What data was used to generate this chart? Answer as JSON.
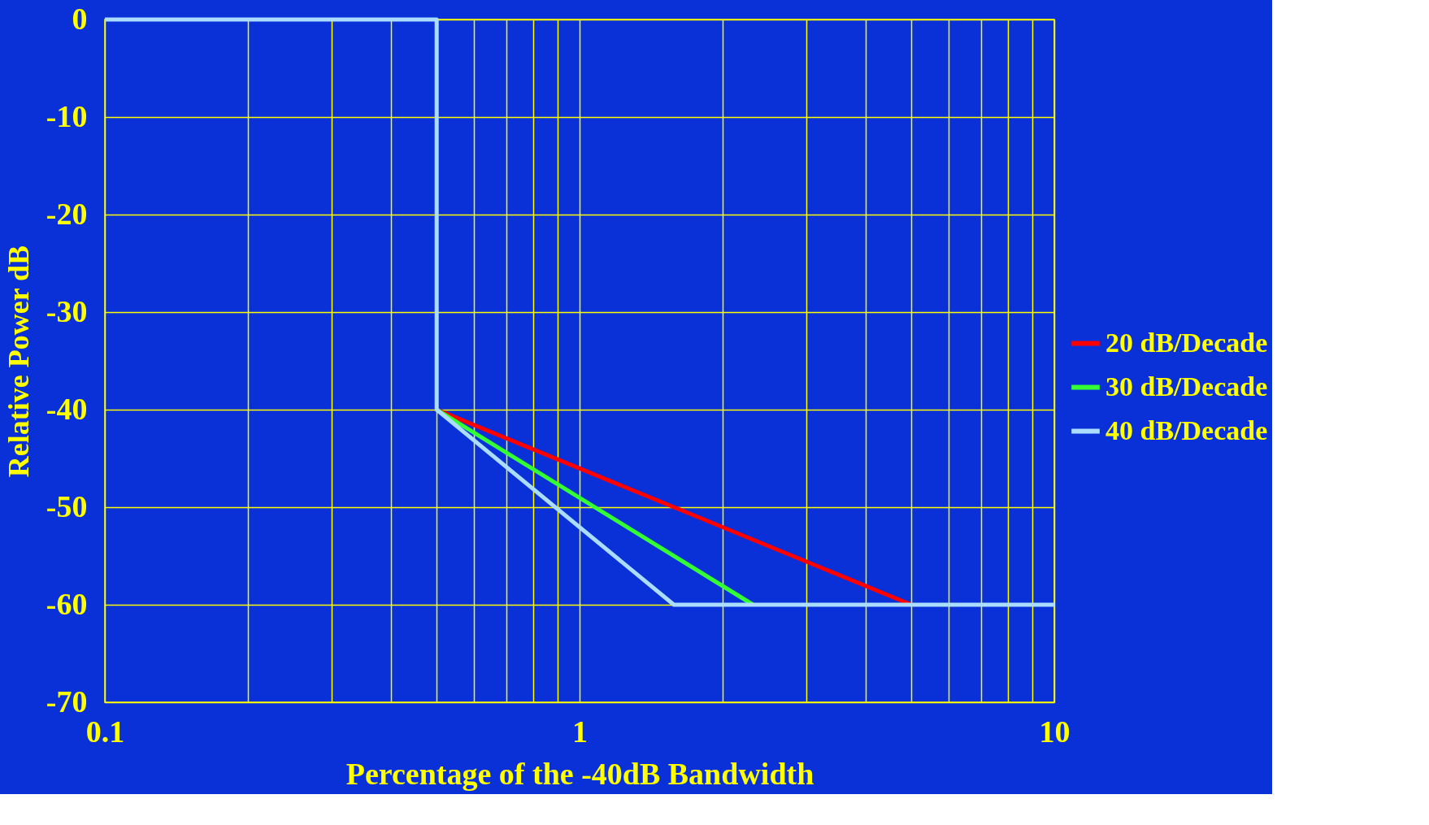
{
  "chart_data": {
    "type": "line",
    "xlabel": "Percentage of the  -40dB Bandwidth",
    "ylabel": "Relative Power dB",
    "log": "x",
    "xlim": [
      0.1,
      10
    ],
    "ylim": [
      -70,
      0
    ],
    "xticks": [
      {
        "value": 0.1,
        "label": "0.1"
      },
      {
        "value": 0.2,
        "label": null
      },
      {
        "value": 0.3,
        "label": null
      },
      {
        "value": 0.4,
        "label": null
      },
      {
        "value": 0.5,
        "label": null
      },
      {
        "value": 0.6,
        "label": null
      },
      {
        "value": 0.7,
        "label": null
      },
      {
        "value": 0.8,
        "label": null
      },
      {
        "value": 0.9,
        "label": null
      },
      1,
      {
        "value": 2,
        "label": null
      },
      {
        "value": 3,
        "label": null
      },
      {
        "value": 4,
        "label": null
      },
      {
        "value": 5,
        "label": null
      },
      {
        "value": 6,
        "label": null
      },
      {
        "value": 7,
        "label": null
      },
      {
        "value": 8,
        "label": null
      },
      {
        "value": 9,
        "label": null
      },
      10
    ],
    "yticks": [
      -70,
      -60,
      -50,
      -40,
      -30,
      -20,
      -10,
      0
    ],
    "grid": true,
    "legend": "right",
    "marker": "none",
    "line_style": "solid",
    "series": [
      {
        "name": "20 dB/Decade",
        "color": "#ff0000",
        "x": [
          0.5,
          5
        ],
        "values": [
          -40,
          -60
        ]
      },
      {
        "name": "30 dB/Decade",
        "color": "#33ff33",
        "x": [
          0.5,
          2.32
        ],
        "values": [
          -40,
          -60
        ]
      },
      {
        "name": "40 dB/Decade",
        "color": "#aaddff",
        "x": [
          0.1,
          0.5,
          0.5,
          1.58,
          10
        ],
        "values": [
          0,
          0,
          -40,
          -60,
          -60
        ]
      }
    ]
  }
}
